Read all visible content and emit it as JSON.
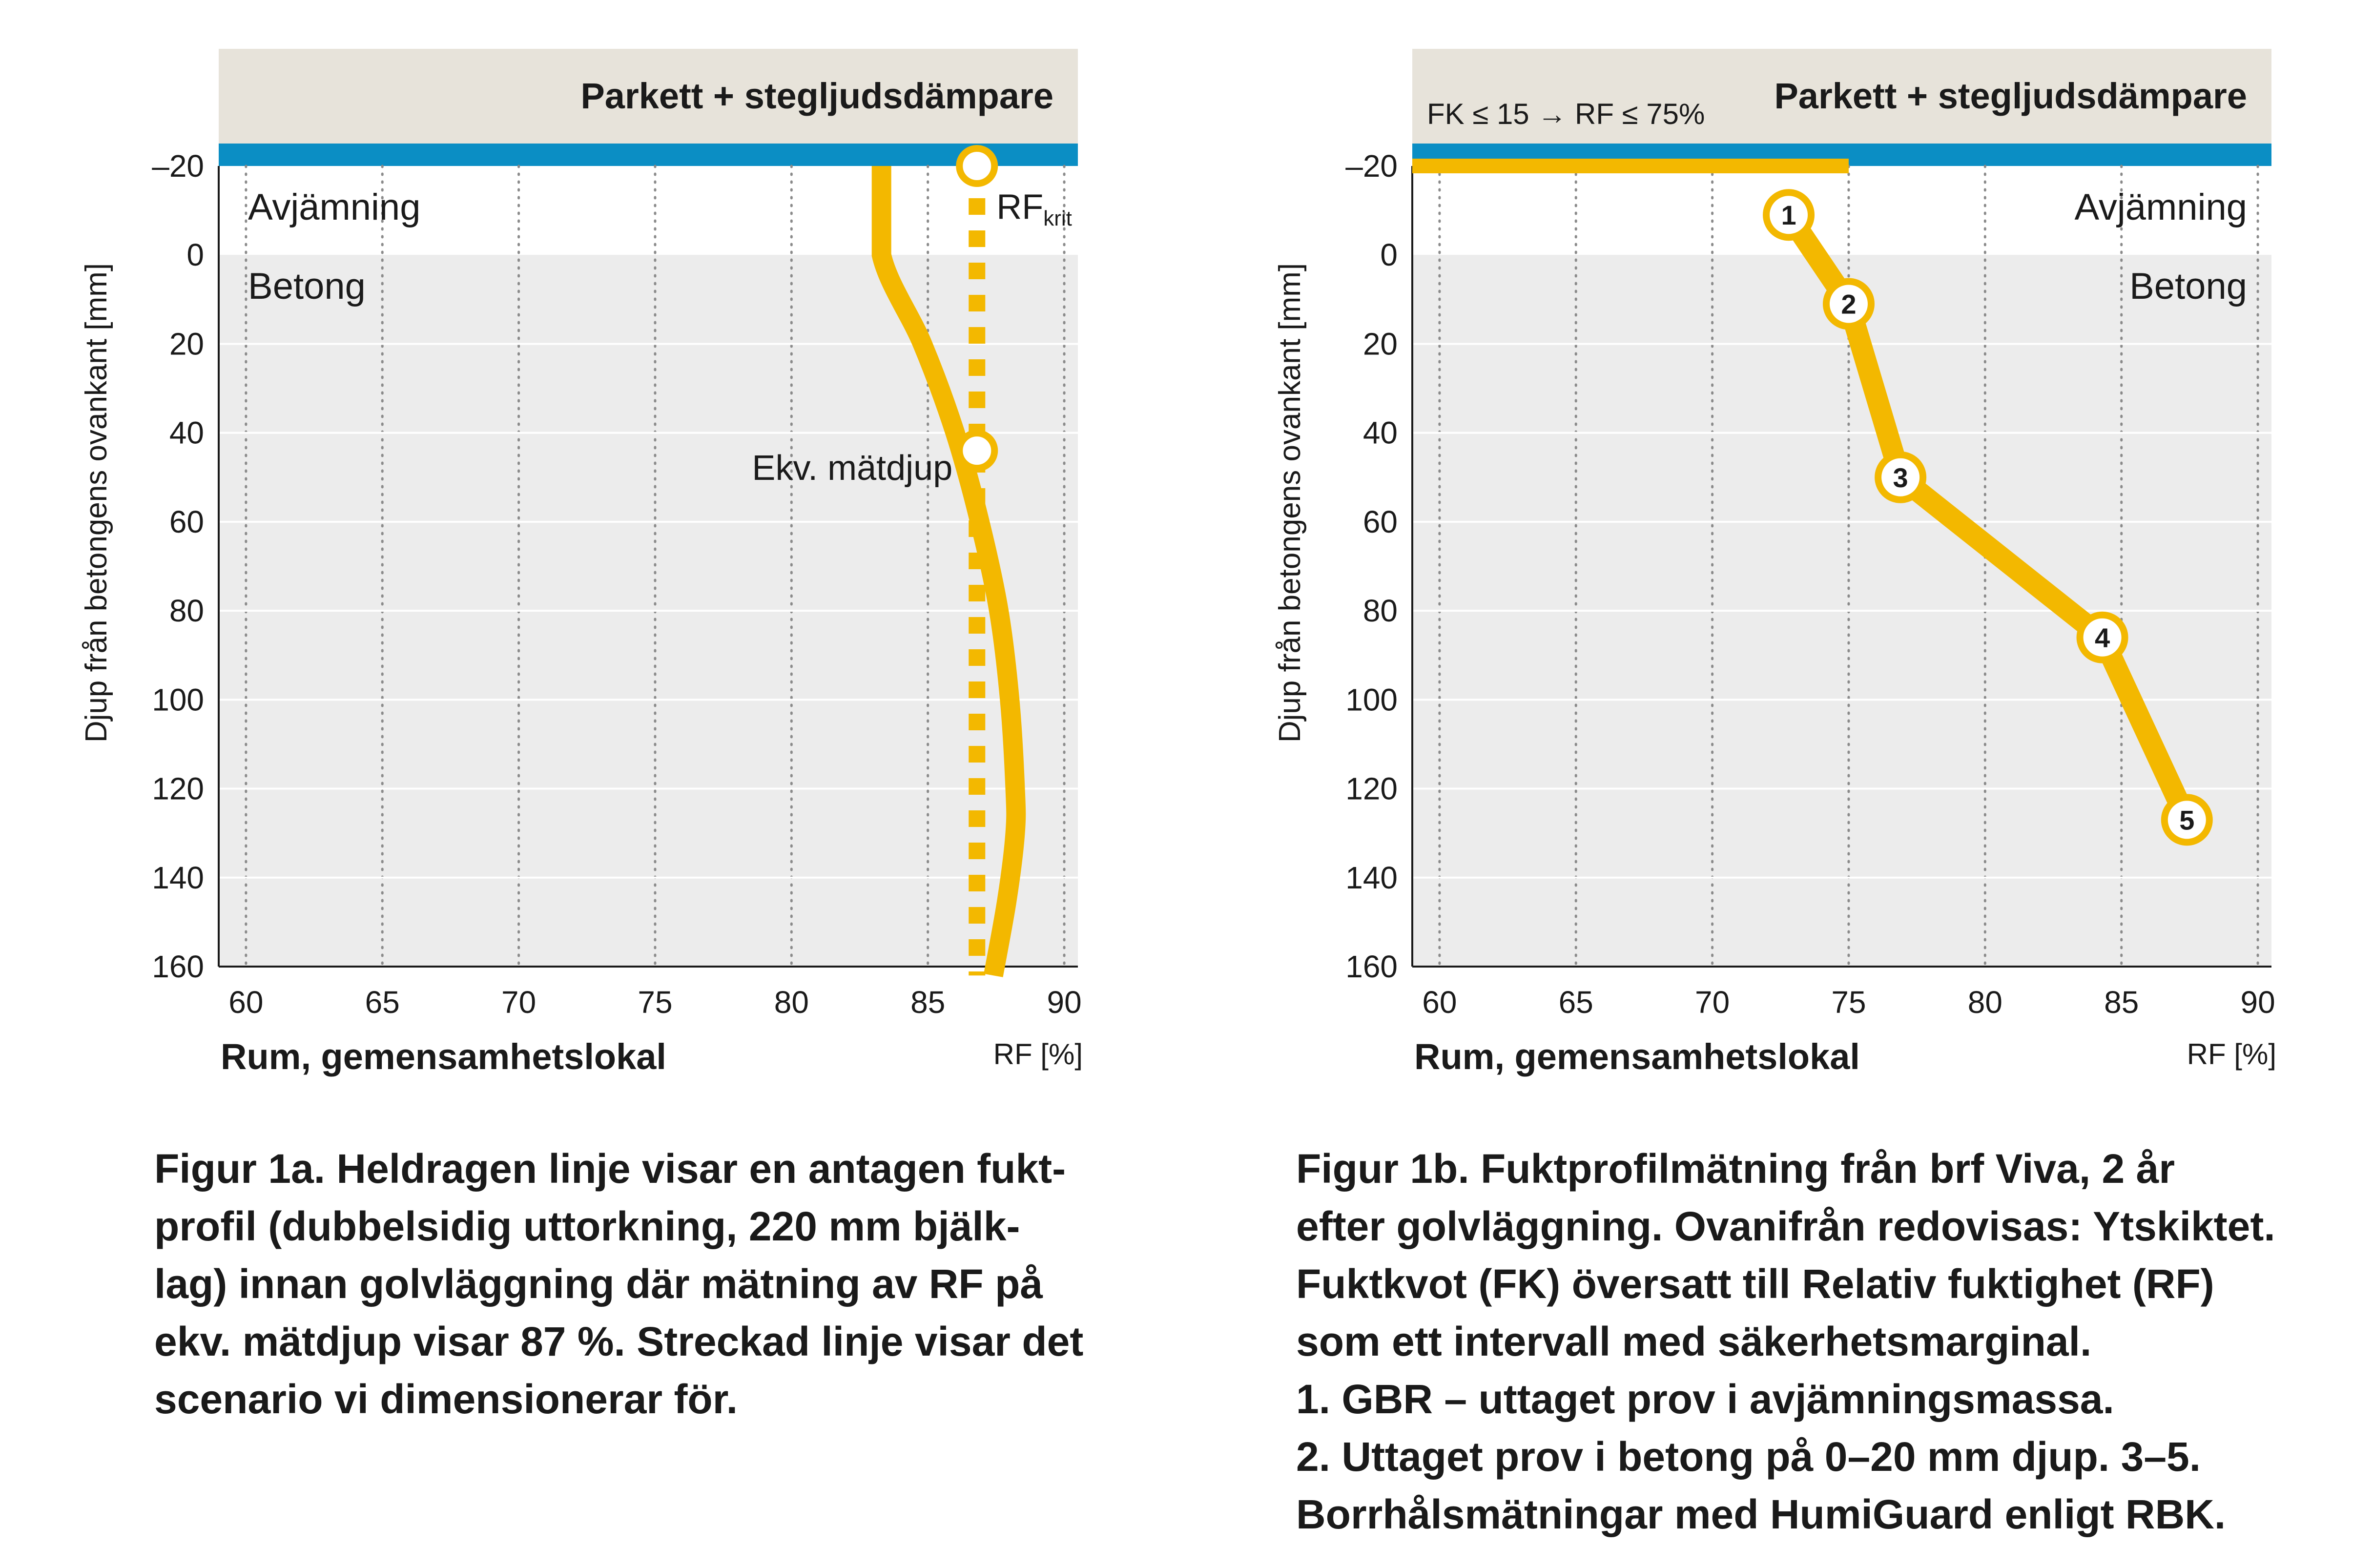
{
  "colors": {
    "header_band": "#e7e3da",
    "blue_layer": "#0b8ec4",
    "concrete_zone": "#ececec",
    "curve": "#f3b800",
    "axis": "#1a1a1a",
    "grid": "#8a8a8a"
  },
  "chart_data": [
    {
      "type": "line",
      "header": "Parkett + stegljudsdämpare",
      "xlabel": "RF [%]",
      "ylabel": "Djup från betongens ovankant [mm]",
      "subtitle": "Rum, gemensamhetslokal",
      "xlim": [
        59,
        90.5
      ],
      "ylim": [
        -20,
        160
      ],
      "y_inverted": true,
      "x_ticks": [
        "60",
        "65",
        "70",
        "75",
        "80",
        "85",
        "90"
      ],
      "y_ticks": [
        "–20",
        "0",
        "20",
        "40",
        "60",
        "80",
        "100",
        "120",
        "140",
        "160"
      ],
      "grid": "vertical-dotted",
      "zones": [
        "Avjämning",
        "Betong"
      ],
      "series": [
        {
          "style": "solid",
          "x": [
            83.3,
            83.3,
            84.8,
            86.0,
            86.9,
            87.6,
            88.0,
            88.2,
            88.2,
            87.9,
            87.4
          ],
          "y": [
            -20,
            0,
            20,
            40,
            60,
            80,
            100,
            120,
            130,
            145,
            162
          ]
        },
        {
          "style": "dashed",
          "x": [
            86.8,
            86.8
          ],
          "y": [
            -20,
            162
          ]
        }
      ],
      "markers": [
        {
          "label": "RF",
          "sub": "krit",
          "x": 86.8,
          "y": -20
        },
        {
          "label": "Ekv. mätdjup",
          "x": 86.8,
          "y": 44
        }
      ]
    },
    {
      "type": "line",
      "header": "Parkett + stegljudsdämpare",
      "xlabel": "RF [%]",
      "ylabel": "Djup från betongens ovankant [mm]",
      "subtitle": "Rum, gemensamhetslokal",
      "xlim": [
        59,
        90.5
      ],
      "ylim": [
        -20,
        160
      ],
      "y_inverted": true,
      "x_ticks": [
        "60",
        "65",
        "70",
        "75",
        "80",
        "85",
        "90"
      ],
      "y_ticks": [
        "–20",
        "0",
        "20",
        "40",
        "60",
        "80",
        "100",
        "120",
        "140",
        "160"
      ],
      "grid": "vertical-dotted",
      "zones": [
        "Avjämning",
        "Betong"
      ],
      "annotation": "FK ≤ 15 → RF ≤ 75%",
      "reference_line": {
        "x": [
          59,
          75
        ],
        "y": [
          -20,
          -20
        ]
      },
      "series": [
        {
          "style": "solid",
          "points": [
            {
              "label": "1",
              "x": 72.8,
              "y": -9
            },
            {
              "label": "2",
              "x": 75.0,
              "y": 11
            },
            {
              "label": "3",
              "x": 76.9,
              "y": 50
            },
            {
              "label": "4",
              "x": 84.3,
              "y": 86
            },
            {
              "label": "5",
              "x": 87.4,
              "y": 127
            }
          ]
        }
      ]
    }
  ],
  "captions": {
    "left": [
      "Figur 1a. Heldragen linje visar en antagen fukt-",
      "profil (dubbelsidig uttorkning, 220 mm bjälk-",
      "lag) innan golvläggning där mätning av RF på",
      "ekv. mätdjup visar 87 %. Streckad linje visar det",
      "scenario vi dimensionerar för."
    ],
    "right": [
      "Figur 1b.  Fuktprofilmätning från brf Viva, 2 år",
      "efter golvläggning. Ovanifrån redovisas: Ytskiktet.",
      "Fuktkvot (FK) översatt till Relativ fuktighet (RF)",
      "som ett intervall med säkerhetsmarginal.",
      "1. GBR – uttaget prov i avjämningsmassa.",
      "2. Uttaget prov i betong på 0–20 mm djup. 3–5.",
      "Borrhålsmätningar med HumiGuard enligt RBK."
    ]
  }
}
